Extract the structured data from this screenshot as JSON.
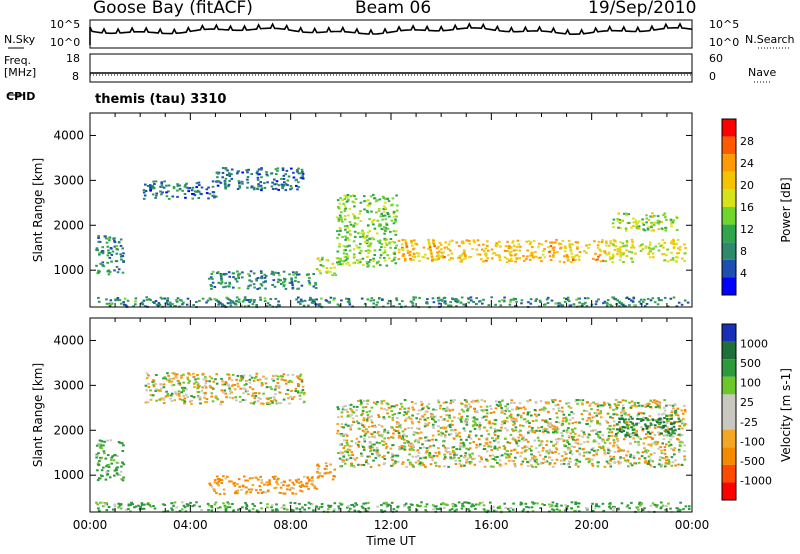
{
  "header": {
    "station": "Goose Bay (fitACF)",
    "beam": "Beam 06",
    "date": "19/Sep/2010"
  },
  "strip": {
    "nsky_label": "N.Sky",
    "nsearch_label": "N.Search",
    "freq_label": "Freq.",
    "freq_unit": "[MHz]",
    "nave_label": "Nave",
    "cpid_label": "CPID",
    "cpid_value": "themis (tau) 3310",
    "noise_ticks": [
      "10^5",
      "10^0"
    ],
    "freq_ticks": [
      "18",
      "8"
    ],
    "nave_ticks": [
      "60",
      "0"
    ]
  },
  "chart_data": [
    {
      "type": "heatmap",
      "name": "power",
      "ylabel": "Slant Range [km]",
      "ylim": [
        180,
        4500
      ],
      "yticks": [
        1000,
        2000,
        3000,
        4000
      ],
      "xlim": [
        0,
        24
      ],
      "colorbar": {
        "label": "Power [dB]",
        "ticks": [
          "28",
          "24",
          "20",
          "16",
          "12",
          "8",
          "4"
        ],
        "colors": [
          "#ff0000",
          "#ff5a00",
          "#ff9b00",
          "#f5c400",
          "#d6e31a",
          "#6fd62e",
          "#2fa64a",
          "#2d8a6a",
          "#1d4fb0",
          "#0000ff"
        ]
      },
      "echo_regions": [
        {
          "t": [
            0.2,
            1.3
          ],
          "r": [
            900,
            1800
          ],
          "level": 8
        },
        {
          "t": [
            2.1,
            5.0
          ],
          "r": [
            2600,
            3000
          ],
          "level": 6
        },
        {
          "t": [
            5.0,
            8.5
          ],
          "r": [
            2800,
            3300
          ],
          "level": 6
        },
        {
          "t": [
            4.7,
            9.0
          ],
          "r": [
            600,
            1000
          ],
          "level": 8
        },
        {
          "t": [
            9.0,
            9.8
          ],
          "r": [
            900,
            1300
          ],
          "level": 16
        },
        {
          "t": [
            9.8,
            12.2
          ],
          "r": [
            1100,
            2700
          ],
          "level": 14
        },
        {
          "t": [
            12.2,
            20.5
          ],
          "r": [
            1200,
            1700
          ],
          "level": 22
        },
        {
          "t": [
            20.5,
            23.7
          ],
          "r": [
            1200,
            1700
          ],
          "level": 18
        },
        {
          "t": [
            20.8,
            23.5
          ],
          "r": [
            1900,
            2300
          ],
          "level": 16
        },
        {
          "t": [
            0.2,
            23.9
          ],
          "r": [
            200,
            420
          ],
          "level": 8
        }
      ]
    },
    {
      "type": "heatmap",
      "name": "velocity",
      "xlabel": "Time UT",
      "ylabel": "Slant Range [km]",
      "ylim": [
        180,
        4500
      ],
      "yticks": [
        1000,
        2000,
        3000,
        4000
      ],
      "xlim": [
        0,
        24
      ],
      "xticks": [
        "00:00",
        "04:00",
        "08:00",
        "12:00",
        "16:00",
        "20:00",
        "00:00"
      ],
      "colorbar": {
        "label": "Velocity [m s-1]",
        "ticks": [
          "1000",
          "500",
          "100",
          "25",
          "-25",
          "-100",
          "-500",
          "-1000"
        ],
        "colors": [
          "#1a2fb8",
          "#1f6f3a",
          "#2a9a3a",
          "#6cc82a",
          "#c8c8c0",
          "#c8c8c0",
          "#f5a623",
          "#f58a00",
          "#ff4a00",
          "#ff0000"
        ]
      },
      "echo_regions": [
        {
          "t": [
            0.2,
            1.3
          ],
          "r": [
            900,
            1800
          ],
          "level": 100
        },
        {
          "t": [
            2.1,
            8.5
          ],
          "r": [
            2600,
            3300
          ],
          "level": 0
        },
        {
          "t": [
            4.7,
            9.0
          ],
          "r": [
            600,
            1000
          ],
          "level": -100
        },
        {
          "t": [
            9.0,
            9.8
          ],
          "r": [
            900,
            1300
          ],
          "level": -100
        },
        {
          "t": [
            9.8,
            23.7
          ],
          "r": [
            1200,
            2700
          ],
          "level": 0
        },
        {
          "t": [
            20.8,
            23.5
          ],
          "r": [
            1900,
            2300
          ],
          "level": 300
        },
        {
          "t": [
            0.2,
            23.9
          ],
          "r": [
            200,
            420
          ],
          "level": 100
        }
      ]
    }
  ]
}
